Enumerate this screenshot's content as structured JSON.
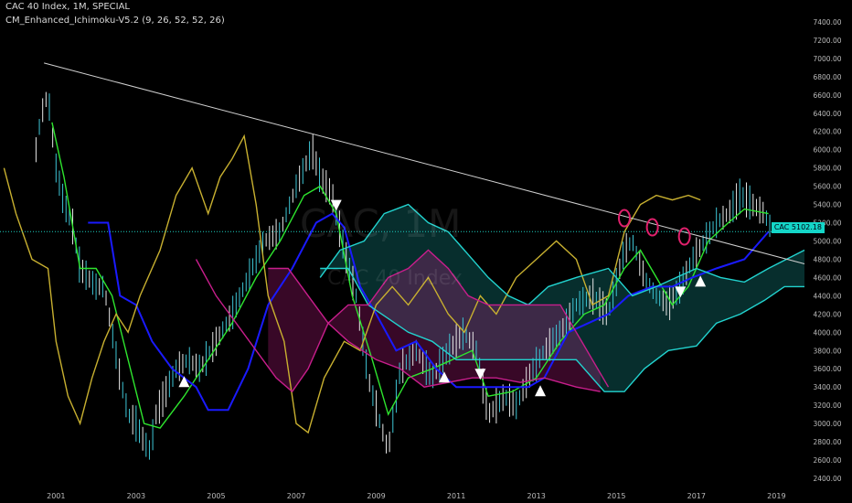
{
  "header": {
    "symbol_line": "CAC 40 Index, 1M, SPECIAL",
    "indicator_line": "CM_Enhanced_Ichimoku-V5.2 (9, 26, 52, 52, 26)"
  },
  "watermark": {
    "ticker": "CAC, 1M",
    "name": "CAC 40 Index"
  },
  "price_badge": {
    "label": "CAC",
    "value": "5102.18"
  },
  "colors": {
    "background": "#000000",
    "bar": "#e8e8e8",
    "bar_alt": "#3ec6d6",
    "tenkan_green": "#2ee52e",
    "kijun_blue": "#1a1aff",
    "lagging_yellow": "#c8b030",
    "span_cyan": "#22d3cf",
    "span_magenta": "#c81e8c",
    "trendline": "#d0d0d0",
    "grid_text": "#bbbbbb",
    "circle": "#e0206c"
  },
  "chart_data": {
    "type": "line",
    "title": "CAC 40 Index, 1M, SPECIAL",
    "x_ticks": [
      "2001",
      "2003",
      "2005",
      "2007",
      "2009",
      "2011",
      "2013",
      "2015",
      "2017",
      "2019"
    ],
    "x_range": [
      1999.6,
      2019.7
    ],
    "y_ticks": [
      "2400.00",
      "2600.00",
      "2800.00",
      "3000.00",
      "3200.00",
      "3400.00",
      "3600.00",
      "3800.00",
      "4000.00",
      "4200.00",
      "4400.00",
      "4600.00",
      "4800.00",
      "5000.00",
      "5200.00",
      "5400.00",
      "5600.00",
      "5800.00",
      "6000.00",
      "6200.00",
      "6400.00",
      "6600.00",
      "6800.00",
      "7000.00",
      "7200.00",
      "7400.00"
    ],
    "ylim": [
      2330,
      7560
    ],
    "last_price": 5102.18,
    "price_monthly": [
      [
        2000.5,
        6000
      ],
      [
        2000.6,
        6300
      ],
      [
        2000.7,
        6500
      ],
      [
        2000.8,
        6600
      ],
      [
        2000.9,
        6200
      ],
      [
        2001.0,
        5800
      ],
      [
        2001.2,
        5400
      ],
      [
        2001.4,
        5200
      ],
      [
        2001.6,
        4700
      ],
      [
        2001.8,
        4600
      ],
      [
        2002.0,
        4500
      ],
      [
        2002.2,
        4500
      ],
      [
        2002.4,
        4000
      ],
      [
        2002.6,
        3500
      ],
      [
        2002.8,
        3100
      ],
      [
        2003.0,
        3000
      ],
      [
        2003.2,
        2800
      ],
      [
        2003.35,
        2700
      ],
      [
        2003.5,
        3100
      ],
      [
        2003.7,
        3300
      ],
      [
        2004.0,
        3600
      ],
      [
        2004.3,
        3700
      ],
      [
        2004.6,
        3600
      ],
      [
        2005.0,
        3900
      ],
      [
        2005.4,
        4200
      ],
      [
        2005.8,
        4600
      ],
      [
        2006.2,
        5000
      ],
      [
        2006.6,
        5100
      ],
      [
        2007.0,
        5600
      ],
      [
        2007.4,
        6000
      ],
      [
        2007.6,
        5700
      ],
      [
        2007.9,
        5500
      ],
      [
        2008.2,
        4900
      ],
      [
        2008.5,
        4400
      ],
      [
        2008.8,
        3500
      ],
      [
        2009.1,
        3000
      ],
      [
        2009.3,
        2700
      ],
      [
        2009.6,
        3600
      ],
      [
        2010.0,
        3800
      ],
      [
        2010.4,
        3500
      ],
      [
        2010.8,
        3800
      ],
      [
        2011.2,
        4000
      ],
      [
        2011.5,
        3800
      ],
      [
        2011.8,
        3100
      ],
      [
        2012.2,
        3300
      ],
      [
        2012.5,
        3200
      ],
      [
        2012.8,
        3500
      ],
      [
        2013.2,
        3800
      ],
      [
        2013.6,
        4000
      ],
      [
        2014.0,
        4300
      ],
      [
        2014.4,
        4400
      ],
      [
        2014.8,
        4200
      ],
      [
        2015.2,
        4900
      ],
      [
        2015.4,
        5000
      ],
      [
        2015.7,
        4600
      ],
      [
        2016.0,
        4400
      ],
      [
        2016.3,
        4300
      ],
      [
        2016.6,
        4500
      ],
      [
        2016.9,
        4800
      ],
      [
        2017.2,
        5000
      ],
      [
        2017.5,
        5200
      ],
      [
        2017.8,
        5300
      ],
      [
        2018.1,
        5500
      ],
      [
        2018.4,
        5400
      ],
      [
        2018.7,
        5300
      ],
      [
        2018.9,
        5100
      ]
    ],
    "series": [
      {
        "name": "",
        "color": "#2ee52e",
        "points": [
          [
            2000.9,
            6300
          ],
          [
            2001.2,
            5700
          ],
          [
            2001.6,
            4700
          ],
          [
            2002.0,
            4700
          ],
          [
            2002.4,
            4400
          ],
          [
            2002.8,
            3700
          ],
          [
            2003.2,
            3000
          ],
          [
            2003.6,
            2950
          ],
          [
            2004.2,
            3300
          ],
          [
            2004.8,
            3700
          ],
          [
            2005.4,
            4100
          ],
          [
            2006.0,
            4600
          ],
          [
            2006.6,
            5000
          ],
          [
            2007.2,
            5500
          ],
          [
            2007.6,
            5600
          ],
          [
            2008.0,
            5300
          ],
          [
            2008.4,
            4400
          ],
          [
            2008.9,
            3700
          ],
          [
            2009.3,
            3100
          ],
          [
            2009.8,
            3500
          ],
          [
            2010.4,
            3600
          ],
          [
            2010.9,
            3700
          ],
          [
            2011.4,
            3800
          ],
          [
            2011.8,
            3300
          ],
          [
            2012.4,
            3350
          ],
          [
            2013.0,
            3500
          ],
          [
            2013.6,
            3900
          ],
          [
            2014.2,
            4200
          ],
          [
            2014.7,
            4300
          ],
          [
            2015.2,
            4700
          ],
          [
            2015.6,
            4900
          ],
          [
            2016.0,
            4600
          ],
          [
            2016.4,
            4300
          ],
          [
            2016.8,
            4500
          ],
          [
            2017.3,
            5000
          ],
          [
            2017.8,
            5200
          ],
          [
            2018.2,
            5350
          ],
          [
            2018.8,
            5300
          ]
        ]
      },
      {
        "name": "",
        "color": "#1a1aff",
        "points": [
          [
            2001.8,
            5200
          ],
          [
            2002.3,
            5200
          ],
          [
            2002.6,
            4400
          ],
          [
            2003.0,
            4300
          ],
          [
            2003.4,
            3900
          ],
          [
            2003.9,
            3600
          ],
          [
            2004.5,
            3400
          ],
          [
            2004.8,
            3150
          ],
          [
            2005.3,
            3150
          ],
          [
            2005.8,
            3600
          ],
          [
            2006.3,
            4300
          ],
          [
            2006.9,
            4700
          ],
          [
            2007.5,
            5200
          ],
          [
            2007.9,
            5300
          ],
          [
            2008.2,
            5150
          ],
          [
            2008.6,
            4500
          ],
          [
            2009.0,
            4200
          ],
          [
            2009.5,
            3800
          ],
          [
            2010.0,
            3900
          ],
          [
            2010.5,
            3600
          ],
          [
            2011.0,
            3400
          ],
          [
            2011.6,
            3400
          ],
          [
            2012.2,
            3400
          ],
          [
            2012.8,
            3400
          ],
          [
            2013.2,
            3500
          ],
          [
            2013.8,
            4000
          ],
          [
            2014.3,
            4100
          ],
          [
            2014.8,
            4200
          ],
          [
            2015.3,
            4400
          ],
          [
            2015.9,
            4500
          ],
          [
            2016.4,
            4500
          ],
          [
            2016.9,
            4600
          ],
          [
            2017.5,
            4700
          ],
          [
            2018.2,
            4800
          ],
          [
            2018.8,
            5100
          ]
        ]
      },
      {
        "name": "",
        "color": "#c8b030",
        "points": [
          [
            1999.7,
            5800
          ],
          [
            2000.0,
            5300
          ],
          [
            2000.4,
            4800
          ],
          [
            2000.8,
            4700
          ],
          [
            2001.0,
            3900
          ],
          [
            2001.3,
            3300
          ],
          [
            2001.6,
            3000
          ],
          [
            2001.9,
            3500
          ],
          [
            2002.2,
            3900
          ],
          [
            2002.5,
            4200
          ],
          [
            2002.8,
            4000
          ],
          [
            2003.1,
            4400
          ],
          [
            2003.6,
            4900
          ],
          [
            2004.0,
            5500
          ],
          [
            2004.4,
            5800
          ],
          [
            2004.8,
            5300
          ],
          [
            2005.1,
            5700
          ],
          [
            2005.4,
            5900
          ],
          [
            2005.7,
            6150
          ],
          [
            2006.0,
            5400
          ],
          [
            2006.3,
            4400
          ],
          [
            2006.7,
            3900
          ],
          [
            2007.0,
            3000
          ],
          [
            2007.3,
            2900
          ],
          [
            2007.7,
            3500
          ],
          [
            2008.2,
            3900
          ],
          [
            2008.6,
            3800
          ],
          [
            2009.0,
            4300
          ],
          [
            2009.4,
            4500
          ],
          [
            2009.8,
            4300
          ],
          [
            2010.3,
            4600
          ],
          [
            2010.8,
            4200
          ],
          [
            2011.2,
            4000
          ],
          [
            2011.6,
            4400
          ],
          [
            2012.0,
            4200
          ],
          [
            2012.5,
            4600
          ],
          [
            2013.0,
            4800
          ],
          [
            2013.5,
            5000
          ],
          [
            2014.0,
            4800
          ],
          [
            2014.4,
            4300
          ],
          [
            2014.8,
            4400
          ],
          [
            2015.2,
            5100
          ],
          [
            2015.6,
            5400
          ],
          [
            2016.0,
            5500
          ],
          [
            2016.4,
            5450
          ],
          [
            2016.8,
            5500
          ],
          [
            2017.1,
            5450
          ]
        ]
      },
      {
        "name": "",
        "color": "#22d3cf",
        "points": [
          [
            2007.6,
            4700
          ],
          [
            2008.3,
            4700
          ],
          [
            2008.8,
            4300
          ],
          [
            2009.3,
            4150
          ],
          [
            2009.8,
            4000
          ],
          [
            2010.4,
            3900
          ],
          [
            2011.0,
            3700
          ],
          [
            2011.6,
            3700
          ],
          [
            2012.0,
            3700
          ],
          [
            2013.5,
            3700
          ],
          [
            2014.0,
            3700
          ],
          [
            2014.7,
            3350
          ],
          [
            2015.2,
            3350
          ],
          [
            2015.7,
            3600
          ],
          [
            2016.3,
            3800
          ],
          [
            2017.0,
            3850
          ],
          [
            2017.5,
            4100
          ],
          [
            2018.1,
            4200
          ],
          [
            2018.7,
            4350
          ],
          [
            2019.2,
            4500
          ],
          [
            2019.7,
            4500
          ]
        ]
      },
      {
        "name": "",
        "color": "#22d3cf",
        "points": [
          [
            2007.6,
            4600
          ],
          [
            2008.1,
            4900
          ],
          [
            2008.7,
            5000
          ],
          [
            2009.2,
            5300
          ],
          [
            2009.8,
            5400
          ],
          [
            2010.3,
            5200
          ],
          [
            2010.8,
            5100
          ],
          [
            2011.2,
            4900
          ],
          [
            2011.8,
            4600
          ],
          [
            2012.3,
            4400
          ],
          [
            2012.8,
            4300
          ],
          [
            2013.3,
            4500
          ],
          [
            2014.0,
            4600
          ],
          [
            2014.8,
            4700
          ],
          [
            2015.4,
            4400
          ],
          [
            2016.0,
            4500
          ],
          [
            2016.5,
            4600
          ],
          [
            2017.0,
            4700
          ],
          [
            2017.6,
            4600
          ],
          [
            2018.2,
            4550
          ],
          [
            2018.8,
            4700
          ],
          [
            2019.7,
            4900
          ]
        ]
      },
      {
        "name": "",
        "color": "#c81e8c",
        "points": [
          [
            2004.5,
            4800
          ],
          [
            2005.0,
            4400
          ],
          [
            2005.5,
            4100
          ],
          [
            2006.0,
            3800
          ],
          [
            2006.5,
            3500
          ],
          [
            2006.9,
            3350
          ],
          [
            2007.3,
            3600
          ],
          [
            2007.8,
            4100
          ],
          [
            2008.3,
            4300
          ],
          [
            2008.8,
            4300
          ],
          [
            2009.3,
            4600
          ],
          [
            2009.8,
            4700
          ],
          [
            2010.3,
            4900
          ],
          [
            2010.8,
            4700
          ],
          [
            2011.3,
            4400
          ],
          [
            2011.8,
            4300
          ],
          [
            2012.4,
            4300
          ],
          [
            2013.0,
            4300
          ],
          [
            2013.6,
            4300
          ],
          [
            2014.0,
            4000
          ],
          [
            2014.4,
            3700
          ],
          [
            2014.8,
            3400
          ]
        ]
      },
      {
        "name": "",
        "color": "#c81e8c",
        "points": [
          [
            2006.3,
            4700
          ],
          [
            2006.8,
            4700
          ],
          [
            2007.3,
            4400
          ],
          [
            2007.8,
            4100
          ],
          [
            2008.3,
            3900
          ],
          [
            2009.0,
            3700
          ],
          [
            2009.6,
            3600
          ],
          [
            2010.2,
            3400
          ],
          [
            2010.8,
            3450
          ],
          [
            2011.4,
            3500
          ],
          [
            2012.0,
            3500
          ],
          [
            2012.6,
            3450
          ],
          [
            2013.2,
            3500
          ],
          [
            2014.0,
            3400
          ],
          [
            2014.6,
            3350
          ]
        ]
      }
    ],
    "trendline": [
      [
        2000.7,
        6950
      ],
      [
        2019.7,
        4750
      ]
    ],
    "markers_up": [
      [
        2004.2,
        3450
      ],
      [
        2010.7,
        3500
      ],
      [
        2013.1,
        3350
      ],
      [
        2017.1,
        4550
      ]
    ],
    "markers_down": [
      [
        2008.0,
        5400
      ],
      [
        2011.6,
        3550
      ],
      [
        2016.6,
        4450
      ]
    ],
    "circles": [
      [
        2015.2,
        5250
      ],
      [
        2015.9,
        5150
      ],
      [
        2016.7,
        5050
      ]
    ]
  }
}
